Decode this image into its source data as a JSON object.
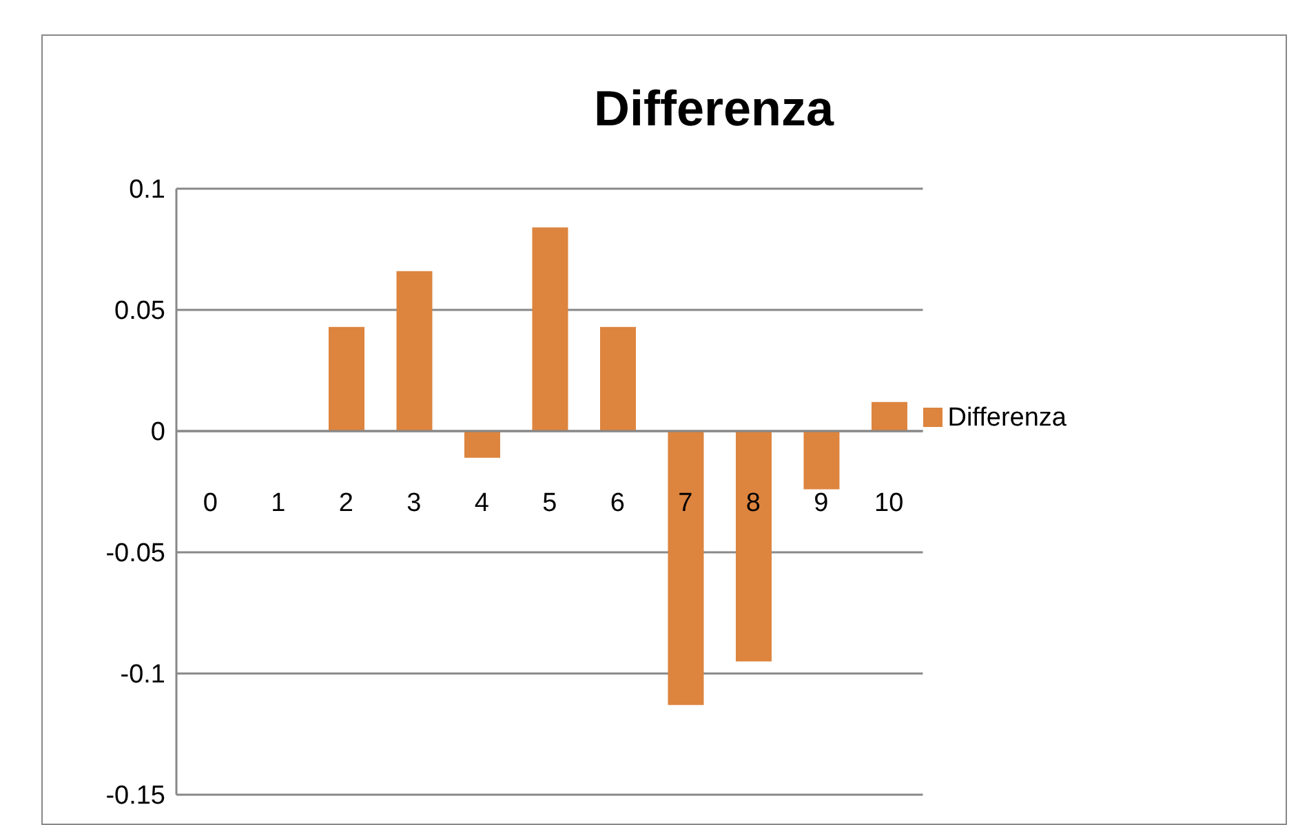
{
  "chart_data": {
    "type": "bar",
    "title": "Differenza",
    "categories": [
      "0",
      "1",
      "2",
      "3",
      "4",
      "5",
      "6",
      "7",
      "8",
      "9",
      "10"
    ],
    "series": [
      {
        "name": "Differenza",
        "color": "#dd843e",
        "values": [
          0,
          0,
          0.043,
          0.066,
          -0.011,
          0.084,
          0.043,
          -0.113,
          -0.095,
          -0.024,
          0.012
        ]
      }
    ],
    "ylim": [
      -0.15,
      0.1
    ],
    "yticks": [
      -0.15,
      -0.1,
      -0.05,
      0,
      0.05,
      0.1
    ],
    "grid": "y",
    "legend": "right"
  }
}
